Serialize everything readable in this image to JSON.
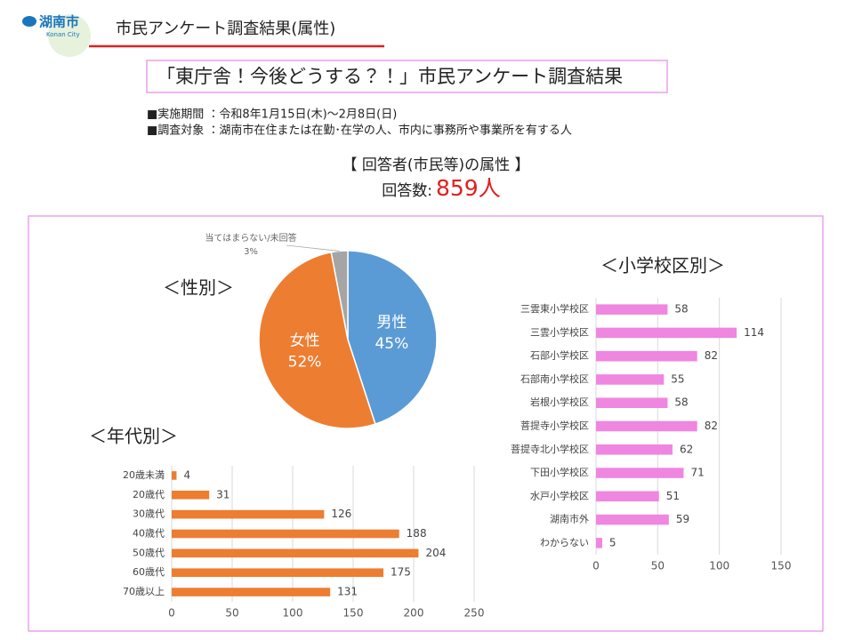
{
  "header": {
    "logo": "湖南市",
    "logo_sub": "Konan City",
    "title": "市民アンケート調査結果(属性)"
  },
  "main_title": "「東庁舎！今後どうする？！」市民アンケート調査結果",
  "info": [
    "■実施期間 ：令和8年1月15日(木)～2月8日(日)",
    "■調査対象 ：湖南市在住または在勤･在学の人、市内に事務所や事業所を有する人"
  ],
  "section_title": "【 回答者(市民等)の属性 】",
  "respondents_label": "回答数:",
  "respondents_value": "859人",
  "chart_data": [
    {
      "type": "pie",
      "title": "＜性別＞",
      "categories": [
        "男性",
        "女性",
        "当てはまらない/未回答"
      ],
      "values": [
        45,
        52,
        3
      ],
      "value_labels": [
        "45%",
        "52%",
        "3%"
      ],
      "colors": [
        "#5b9bd5",
        "#ed7d31",
        "#a5a5a5"
      ]
    },
    {
      "type": "bar",
      "orientation": "horizontal",
      "title": "＜年代別＞",
      "categories": [
        "20歳未満",
        "20歳代",
        "30歳代",
        "40歳代",
        "50歳代",
        "60歳代",
        "70歳以上"
      ],
      "values": [
        4,
        31,
        126,
        188,
        204,
        175,
        131
      ],
      "color": "#ed7d31",
      "xlim": [
        0,
        250
      ],
      "xticks": [
        0,
        50,
        100,
        150,
        200,
        250
      ],
      "grid": true
    },
    {
      "type": "bar",
      "orientation": "horizontal",
      "title": "＜小学校区別＞",
      "categories": [
        "三雲東小学校区",
        "三雲小学校区",
        "石部小学校区",
        "石部南小学校区",
        "岩根小学校区",
        "菩提寺小学校区",
        "菩提寺北小学校区",
        "下田小学校区",
        "水戸小学校区",
        "湖南市外",
        "わからない"
      ],
      "values": [
        58,
        114,
        82,
        55,
        58,
        82,
        62,
        71,
        51,
        59,
        5
      ],
      "color": "#ef86e0",
      "xlim": [
        0,
        150
      ],
      "xticks": [
        0,
        50,
        100,
        150
      ],
      "grid": true
    }
  ]
}
